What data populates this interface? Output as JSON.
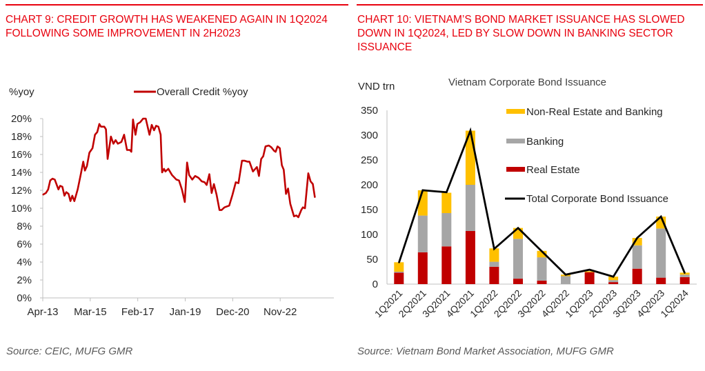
{
  "page": {
    "left": {
      "title": "CHART 9: CREDIT GROWTH HAS WEAKENED AGAIN IN 1Q2024 FOLLOWING SOME IMPROVEMENT IN 2H2023",
      "source": "Source: CEIC, MUFG GMR"
    },
    "right": {
      "title": "CHART 10: VIETNAM’S BOND MARKET ISSUANCE HAS SLOWED DOWN IN 1Q2024, LED BY SLOW DOWN IN BANKING SECTOR ISSUANCE",
      "source": "Source: Vietnam Bond Market Association, MUFG GMR"
    }
  },
  "chart_data": [
    {
      "type": "line",
      "title": "",
      "ylabel": "%yoy",
      "xlabel": "",
      "ylim": [
        0,
        20
      ],
      "yticks": [
        0,
        2,
        4,
        6,
        8,
        10,
        12,
        14,
        16,
        18,
        20
      ],
      "ytick_format": "percent",
      "x_unit": "months since Apr-13",
      "xlim": [
        0,
        141
      ],
      "xticks": [
        {
          "month": 0,
          "label": "Apr-13"
        },
        {
          "month": 23,
          "label": "Mar-15"
        },
        {
          "month": 46,
          "label": "Feb-17"
        },
        {
          "month": 69,
          "label": "Jan-19"
        },
        {
          "month": 92,
          "label": "Dec-20"
        },
        {
          "month": 115,
          "label": "Nov-22"
        }
      ],
      "grid": false,
      "legend": {
        "position": "top-center",
        "entries": [
          "Overall Credit %yoy"
        ]
      },
      "series": [
        {
          "name": "Overall Credit %yoy",
          "color": "#C00000",
          "points": [
            [
              0,
              11.5
            ],
            [
              1.5,
              11.7
            ],
            [
              2.6,
              12.1
            ],
            [
              3.6,
              13.1
            ],
            [
              4.7,
              13.3
            ],
            [
              5.8,
              13.2
            ],
            [
              7.6,
              12.1
            ],
            [
              8.4,
              12.5
            ],
            [
              9.5,
              12.4
            ],
            [
              10.5,
              11.4
            ],
            [
              11.4,
              11.8
            ],
            [
              12.5,
              11.6
            ],
            [
              13.4,
              10.8
            ],
            [
              14.3,
              11.4
            ],
            [
              15.3,
              10.8
            ],
            [
              16.9,
              12.1
            ],
            [
              18.5,
              13.9
            ],
            [
              19.6,
              15.2
            ],
            [
              20.4,
              14.2
            ],
            [
              21.4,
              14.7
            ],
            [
              22.6,
              16.2
            ],
            [
              24.1,
              16.7
            ],
            [
              25.3,
              18.2
            ],
            [
              26.4,
              18.5
            ],
            [
              27.4,
              19.4
            ],
            [
              28.2,
              19.1
            ],
            [
              29.8,
              19.1
            ],
            [
              30.6,
              18.8
            ],
            [
              31.4,
              15.5
            ],
            [
              33.0,
              18.0
            ],
            [
              34.2,
              17.2
            ],
            [
              35.3,
              17.6
            ],
            [
              36.4,
              17.2
            ],
            [
              38.1,
              17.4
            ],
            [
              39.4,
              18.2
            ],
            [
              40.8,
              16.5
            ],
            [
              42.2,
              16.5
            ],
            [
              42.9,
              16.3
            ],
            [
              43.7,
              19.9
            ],
            [
              44.9,
              18.2
            ],
            [
              45.8,
              19.4
            ],
            [
              47.2,
              19.6
            ],
            [
              48.6,
              20.0
            ],
            [
              49.9,
              20.0
            ],
            [
              51.7,
              18.2
            ],
            [
              52.8,
              19.3
            ],
            [
              53.9,
              18.7
            ],
            [
              54.9,
              19.2
            ],
            [
              56.0,
              19.1
            ],
            [
              57.1,
              18.2
            ],
            [
              57.8,
              14.0
            ],
            [
              58.7,
              14.4
            ],
            [
              59.4,
              14.1
            ],
            [
              60.8,
              14.4
            ],
            [
              62.6,
              13.7
            ],
            [
              64.7,
              13.2
            ],
            [
              66.0,
              13.1
            ],
            [
              67.4,
              12.1
            ],
            [
              68.8,
              10.7
            ],
            [
              69.9,
              15.1
            ],
            [
              70.9,
              13.7
            ],
            [
              72.4,
              13.2
            ],
            [
              73.8,
              13.6
            ],
            [
              75.4,
              13.4
            ],
            [
              77.0,
              13.0
            ],
            [
              78.4,
              12.9
            ],
            [
              79.4,
              12.6
            ],
            [
              80.7,
              13.8
            ],
            [
              81.8,
              11.7
            ],
            [
              82.9,
              12.7
            ],
            [
              84.2,
              11.5
            ],
            [
              85.6,
              9.8
            ],
            [
              86.6,
              9.8
            ],
            [
              88.0,
              10.1
            ],
            [
              90.3,
              10.3
            ],
            [
              91.9,
              11.5
            ],
            [
              93.5,
              12.9
            ],
            [
              94.8,
              12.8
            ],
            [
              96.5,
              15.3
            ],
            [
              97.8,
              15.3
            ],
            [
              99.1,
              15.2
            ],
            [
              100.1,
              15.2
            ],
            [
              101.8,
              14.1
            ],
            [
              103.7,
              14.6
            ],
            [
              104.7,
              13.6
            ],
            [
              105.8,
              15.5
            ],
            [
              106.8,
              15.8
            ],
            [
              107.9,
              16.9
            ],
            [
              109.5,
              17.0
            ],
            [
              110.7,
              16.8
            ],
            [
              112.1,
              16.4
            ],
            [
              112.8,
              16.3
            ],
            [
              113.7,
              16.9
            ],
            [
              114.8,
              16.7
            ],
            [
              115.8,
              14.8
            ],
            [
              116.7,
              14.3
            ],
            [
              117.8,
              11.6
            ],
            [
              118.8,
              12.2
            ],
            [
              119.9,
              10.5
            ],
            [
              121.7,
              9.1
            ],
            [
              122.8,
              9.2
            ],
            [
              123.8,
              9.0
            ],
            [
              125.2,
              9.8
            ],
            [
              126.0,
              10.1
            ],
            [
              127.0,
              10.0
            ],
            [
              128.6,
              13.9
            ],
            [
              129.7,
              13.0
            ],
            [
              130.8,
              12.7
            ],
            [
              131.8,
              11.2
            ]
          ]
        }
      ]
    },
    {
      "type": "bar",
      "stacked": true,
      "title": "Vietnam Corporate Bond Issuance",
      "ylabel": "VND trn",
      "xlabel": "",
      "ylim": [
        0,
        350
      ],
      "yticks": [
        0,
        50,
        100,
        150,
        200,
        250,
        300,
        350
      ],
      "grid": false,
      "legend": {
        "position": "top-right"
      },
      "categories": [
        "1Q2021",
        "2Q2021",
        "3Q2021",
        "4Q2021",
        "1Q2022",
        "2Q2022",
        "3Q2022",
        "4Q2022",
        "1Q2023",
        "2Q2023",
        "3Q2023",
        "4Q2023",
        "1Q2024"
      ],
      "series": [
        {
          "name": "Real Estate",
          "color": "#C00000",
          "values": [
            23,
            64,
            76,
            107,
            35,
            11,
            7,
            0,
            24,
            4,
            31,
            13,
            14
          ]
        },
        {
          "name": "Banking",
          "color": "#A6A6A6",
          "values": [
            2,
            74,
            67,
            93,
            10,
            80,
            47,
            16,
            0,
            4,
            47,
            99,
            5
          ]
        },
        {
          "name": "Non-Real Estate and Banking",
          "color": "#FFC000",
          "values": [
            19,
            51,
            41,
            109,
            27,
            22,
            13,
            3,
            2,
            7,
            15,
            24,
            4
          ]
        }
      ],
      "line_series": {
        "name": "Total Corporate Bond Issuance",
        "color": "#000000",
        "values": [
          43,
          189,
          185,
          309,
          71,
          113,
          66,
          19,
          29,
          15,
          93,
          136,
          22
        ]
      },
      "legend_order": [
        "Non-Real Estate and Banking",
        "Banking",
        "Real Estate",
        "Total Corporate Bond Issuance"
      ]
    }
  ]
}
